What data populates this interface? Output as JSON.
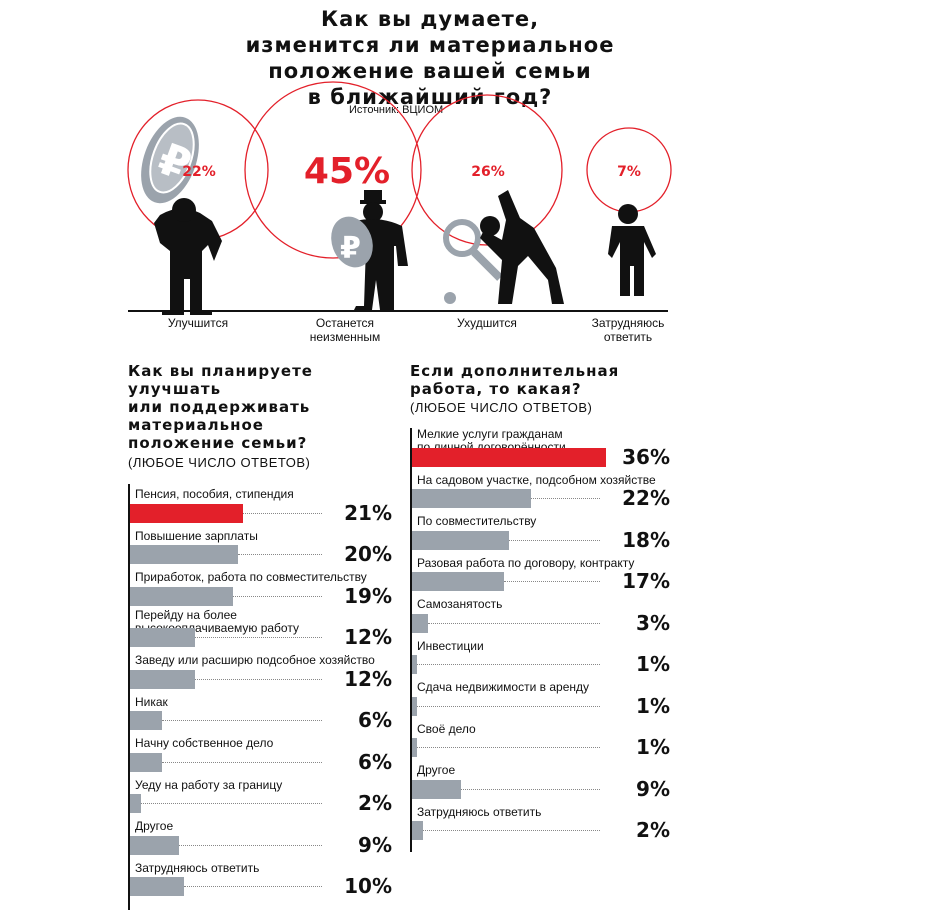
{
  "header": {
    "title_lines": [
      "Как вы думаете,",
      "изменится ли материальное",
      "положение вашей семьи",
      "в ближайший год?"
    ],
    "source": "Источник: ВЦИОМ"
  },
  "colors": {
    "accent": "#e3202a",
    "bar": "#9ba3ac",
    "text": "#111111"
  },
  "top_chart": {
    "type": "bubble",
    "items": [
      {
        "label": "Улучшится",
        "value": 22,
        "value_text": "22%",
        "icon": "figure-holding-ruble-coin-icon"
      },
      {
        "label": "Останется неизменным",
        "label_lines": [
          "Останется",
          "неизменным"
        ],
        "value": 45,
        "value_text": "45%",
        "icon": "figure-with-hat-holding-ruble-coin-icon"
      },
      {
        "label": "Ухудшится",
        "value": 26,
        "value_text": "26%",
        "icon": "figure-dropping-magnifier-icon"
      },
      {
        "label": "Затрудняюсь ответить",
        "label_lines": [
          "Затрудняюсь",
          "ответить"
        ],
        "value": 7,
        "value_text": "7%",
        "icon": "standing-figure-icon"
      }
    ]
  },
  "left_section": {
    "title_lines": [
      "Как вы планируете",
      "улучшать",
      "или поддерживать",
      "материальное",
      "положение семьи?"
    ],
    "subtitle": "(любое число ответов)"
  },
  "right_section": {
    "title_lines": [
      "Если дополнительная",
      "работа, то какая?"
    ],
    "subtitle": "(любое число ответов)"
  },
  "chart_data": [
    {
      "type": "bar",
      "orientation": "horizontal",
      "title": "Как вы планируете улучшать или поддерживать материальное положение семьи?",
      "subtitle": "(любое число ответов)",
      "unit": "%",
      "highlight_index": 0,
      "categories": [
        [
          "Пенсия, пособия, стипендия"
        ],
        [
          "Повышение зарплаты"
        ],
        [
          "Приработок, работа по совместительству"
        ],
        [
          "Перейду на более",
          "высокооплачиваемую работу"
        ],
        [
          "Заведу или расширю подсобное хозяйство"
        ],
        [
          "Никак"
        ],
        [
          "Начну собственное дело"
        ],
        [
          "Уеду на работу за границу"
        ],
        [
          "Другое"
        ],
        [
          "Затрудняюсь ответить"
        ]
      ],
      "values": [
        21,
        20,
        19,
        12,
        12,
        6,
        6,
        2,
        9,
        10
      ],
      "value_labels": [
        "21%",
        "20%",
        "19%",
        "12%",
        "12%",
        "6%",
        "6%",
        "2%",
        "9%",
        "10%"
      ]
    },
    {
      "type": "bar",
      "orientation": "horizontal",
      "title": "Если дополнительная работа, то какая?",
      "subtitle": "(любое число ответов)",
      "unit": "%",
      "highlight_index": 0,
      "categories": [
        [
          "Мелкие услуги гражданам",
          "по личной договорённости"
        ],
        [
          "На садовом участке, подсобном хозяйстве"
        ],
        [
          "По совместительству"
        ],
        [
          "Разовая работа по договору, контракту"
        ],
        [
          "Самозанятость"
        ],
        [
          "Инвестиции"
        ],
        [
          "Сдача недвижимости в аренду"
        ],
        [
          "Своё дело"
        ],
        [
          "Другое"
        ],
        [
          "Затрудняюсь ответить"
        ]
      ],
      "values": [
        36,
        22,
        18,
        17,
        3,
        1,
        1,
        1,
        9,
        2
      ],
      "value_labels": [
        "36%",
        "22%",
        "18%",
        "17%",
        "3%",
        "1%",
        "1%",
        "1%",
        "9%",
        "2%"
      ]
    }
  ]
}
